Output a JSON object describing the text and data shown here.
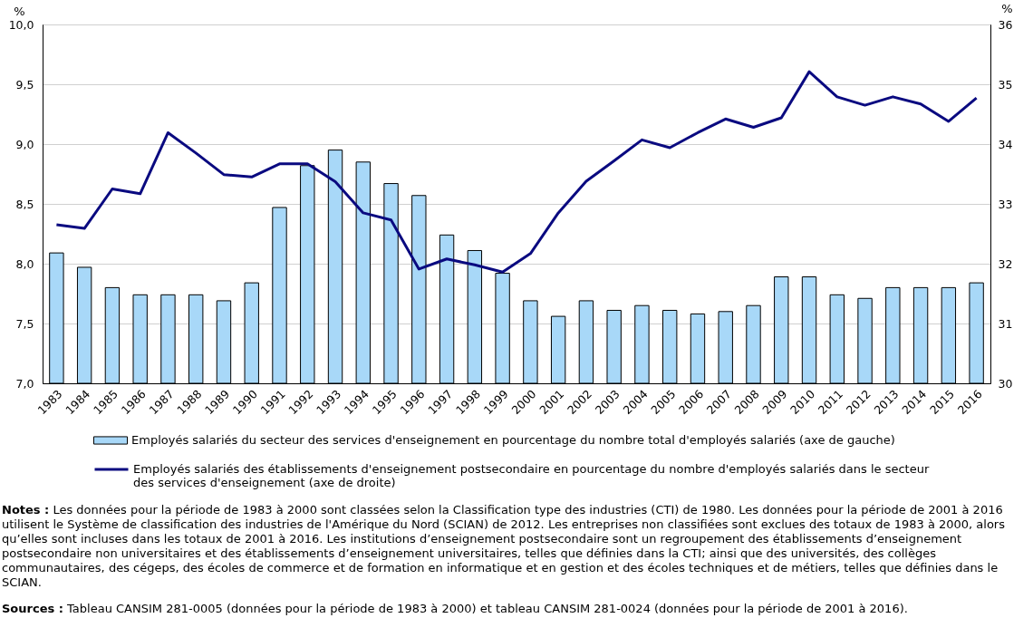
{
  "chart_data": {
    "type": "bar",
    "categories": [
      "1983",
      "1984",
      "1985",
      "1986",
      "1987",
      "1988",
      "1989",
      "1990",
      "1991",
      "1992",
      "1993",
      "1994",
      "1995",
      "1996",
      "1997",
      "1998",
      "1999",
      "2000",
      "2001",
      "2002",
      "2003",
      "2004",
      "2005",
      "2006",
      "2007",
      "2008",
      "2009",
      "2010",
      "2011",
      "2012",
      "2013",
      "2014",
      "2015",
      "2016"
    ],
    "ylabel": "%",
    "y2label": "%",
    "ylim": [
      7,
      10
    ],
    "yticks": [
      {
        "value": 7,
        "label": "7,0"
      },
      {
        "value": 7.5,
        "label": "7,5"
      },
      {
        "value": 8,
        "label": "8,0"
      },
      {
        "value": 8.5,
        "label": "8,5"
      },
      {
        "value": 9,
        "label": "9,0"
      },
      {
        "value": 9.5,
        "label": "9,5"
      },
      {
        "value": 10,
        "label": "10,0"
      }
    ],
    "y2lim": [
      30,
      36
    ],
    "y2ticks": [
      30,
      31,
      32,
      33,
      34,
      35,
      36
    ],
    "grid": "y",
    "legend": "bottom",
    "series": [
      {
        "name": "Employés salariés du secteur des services d'enseignement en pourcentage du nombre total d'employés salariés (axe de gauche)",
        "color": "#a8d8f8",
        "values": [
          8.09,
          7.97,
          7.8,
          7.74,
          7.74,
          7.74,
          7.69,
          7.84,
          8.47,
          8.82,
          8.95,
          8.85,
          8.67,
          8.57,
          8.24,
          8.11,
          7.92,
          7.69,
          7.56,
          7.69,
          7.61,
          7.65,
          7.61,
          7.58,
          7.6,
          7.65,
          7.89,
          7.89,
          7.74,
          7.71,
          7.8,
          7.8,
          7.8,
          7.84
        ]
      },
      {
        "name": "Employés salariés des établissements d'enseignement postsecondaire en pourcentage du nombre d'employés salariés dans le secteur des services d'enseignement (axe de droite)",
        "type": "line",
        "axis": "y2",
        "color": "#0a0a80",
        "values": [
          32.65,
          32.59,
          33.25,
          33.17,
          34.19,
          33.85,
          33.49,
          33.45,
          33.67,
          33.67,
          33.37,
          32.85,
          32.73,
          31.91,
          32.08,
          31.98,
          31.86,
          32.17,
          32.85,
          33.38,
          33.72,
          34.07,
          33.94,
          34.19,
          34.42,
          34.28,
          34.44,
          35.21,
          34.79,
          34.65,
          34.79,
          34.67,
          34.38,
          34.77
        ]
      }
    ],
    "annotations": [
      "Notes : Les données pour la période de 1983 à 2000 sont classées selon la Classification type des industries (CTI) de 1980. Les données pour la période de 2001 à 2016 utilisent le Système de classification des industries de l'Amérique du Nord (SCIAN) de 2012. Les entreprises non classifiées sont exclues des totaux de 1983 à 2000, alors qu’elles sont incluses dans les totaux de 2001 à 2016. Les institutions d’enseignement postsecondaire sont un regroupement des établissements d’enseignement postsecondaire non universitaires et des établissements d’enseignement universitaires, telles que définies dans la CTI; ainsi que des universités, des collèges communautaires, des cégeps, des écoles de commerce et de formation en informatique et en gestion et des écoles techniques et de métiers, telles que définies dans le SCIAN.",
      "Sources : Tableau CANSIM 281-0005 (données pour la période de 1983 à 2000) et tableau CANSIM 281-0024 (données pour la période de 2001 à 2016)."
    ]
  }
}
